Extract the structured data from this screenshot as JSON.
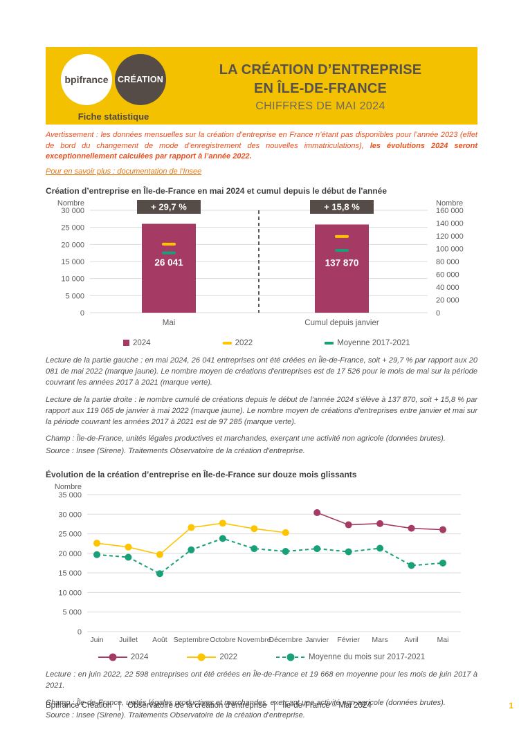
{
  "colors": {
    "header_yellow": "#F3C100",
    "brand_dark": "#554C47",
    "bar_2024": "#A53A64",
    "series_2022": "#FFC400",
    "series_avg": "#18A078",
    "warning_orange": "#E94F1D",
    "page_num_yellow": "#F5B301"
  },
  "header": {
    "logo_bpifrance": "bpifrance",
    "logo_creation": "CRÉATION",
    "tagline": "Fiche statistique",
    "title_line1": "LA CRÉATION D’ENTREPRISE",
    "title_line2": "EN ÎLE-DE-FRANCE",
    "subtitle": "CHIFFRES DE MAI 2024"
  },
  "notice": {
    "warning_normal": "Avertissement : les données mensuelles sur la création d’entreprise en France n’étant pas disponibles pour l’année 2023 (effet de bord du changement de mode d’enregistrement des nouvelles immatriculations), ",
    "warning_bold": "les évolutions 2024 seront exceptionnellement calculées par rapport à l’année 2022.",
    "link": "Pour en savoir plus : documentation de l'Insee"
  },
  "section1": {
    "title": "Création d’entreprise en Île-de-France en mai 2024 et cumul depuis le début de l'année",
    "notes": [
      "Lecture de la partie gauche : en mai 2024, 26 041 entreprises ont été créées en Île-de-France, soit + 29,7 % par rapport aux 20 081 de mai 2022 (marque jaune). Le nombre moyen de créations d'entreprises est de 17 526 pour le mois de mai sur la période couvrant les années 2017 à 2021 (marque verte).",
      "Lecture de la partie droite : le nombre cumulé de créations depuis le début de l'année 2024 s'élève à 137 870, soit + 15,8 % par rapport aux 119 065 de janvier à mai 2022 (marque jaune). Le nombre moyen de créations d'entreprises entre janvier et mai sur la période couvrant les années 2017 à 2021 est de 97 285 (marque verte).",
      "Champ : Île-de-France, unités légales productives et marchandes, exerçant une activité non agricole (données brutes).",
      "Source : Insee (Sirene). Traitements Observatoire de la création d'entreprise."
    ]
  },
  "section2": {
    "title": "Évolution de la création d’entreprise en Île-de-France sur douze mois glissants",
    "notes": [
      "Lecture : en juin 2022, 22 598 entreprises ont été créées en Île-de-France et 19 668 en moyenne pour les mois de juin 2017 à 2021.",
      "Champ : Île-de-France, unités légales productives et marchandes, exerçant une activité non agricole (données brutes).",
      "Source : Insee (Sirene). Traitements Observatoire de la création d'entreprise."
    ]
  },
  "chart_data": [
    {
      "type": "bar",
      "title": "Création d’entreprise en Île-de-France en mai 2024 et cumul depuis le début de l'année",
      "left_axis": {
        "label": "Nombre",
        "max": 30000,
        "ticks": [
          "30 000",
          "25 000",
          "20 000",
          "15 000",
          "10 000",
          "5 000",
          "0"
        ]
      },
      "right_axis": {
        "label": "Nombre",
        "max": 160000,
        "ticks": [
          "160 000",
          "140 000",
          "120 000",
          "100 000",
          "80 000",
          "60 000",
          "40 000",
          "20 000",
          "0"
        ]
      },
      "groups": [
        {
          "label": "Mai",
          "badge": "+ 29,7 %",
          "value": 26041,
          "value_label": "26 041",
          "marker_2022": 20081,
          "marker_avg": 17526
        },
        {
          "label": "Cumul depuis janvier",
          "badge": "+ 15,8 %",
          "value": 137870,
          "value_label": "137 870",
          "marker_2022": 119065,
          "marker_avg": 97285
        }
      ],
      "legend": [
        {
          "label": "2024",
          "color": "#A53A64",
          "marker": "square"
        },
        {
          "label": "2022",
          "color": "#FFC400",
          "marker": "dash"
        },
        {
          "label": "Moyenne 2017-2021",
          "color": "#18A078",
          "marker": "dash"
        }
      ]
    },
    {
      "type": "line",
      "title": "Évolution de la création d’entreprise en Île-de-France sur douze mois glissants",
      "ylabel": "Nombre",
      "ylim": [
        0,
        35000
      ],
      "yticks": [
        "35 000",
        "30 000",
        "25 000",
        "20 000",
        "15 000",
        "10 000",
        "5 000",
        "0"
      ],
      "categories": [
        "Juin",
        "Juillet",
        "Août",
        "Septembre",
        "Octobre",
        "Novembre",
        "Décembre",
        "Janvier",
        "Février",
        "Mars",
        "Avril",
        "Mai"
      ],
      "series": [
        {
          "name": "2024",
          "color": "#A53A64",
          "dash": false,
          "values": [
            null,
            null,
            null,
            null,
            null,
            null,
            null,
            30400,
            27300,
            27600,
            26400,
            26041
          ]
        },
        {
          "name": "2022",
          "color": "#FFC400",
          "dash": false,
          "values": [
            22598,
            21600,
            19700,
            26600,
            27700,
            26300,
            25300,
            null,
            null,
            null,
            null,
            null
          ]
        },
        {
          "name": "Moyenne du mois sur 2017-2021",
          "color": "#18A078",
          "dash": true,
          "values": [
            19668,
            19000,
            14800,
            20900,
            23800,
            21200,
            20500,
            21200,
            20400,
            21300,
            16900,
            17526
          ]
        }
      ],
      "legend": [
        {
          "label": "2024",
          "color": "#A53A64",
          "marker": "line"
        },
        {
          "label": "2022",
          "color": "#FFC400",
          "marker": "line"
        },
        {
          "label": "Moyenne du mois sur 2017-2021",
          "color": "#18A078",
          "marker": "line-dashed"
        }
      ]
    }
  ],
  "footer": {
    "org": "Bpifrance Création",
    "dept": "Observatoire de la création d'entreprise",
    "edition": "Île-de-France – Mai 2024",
    "page_number": "1"
  }
}
